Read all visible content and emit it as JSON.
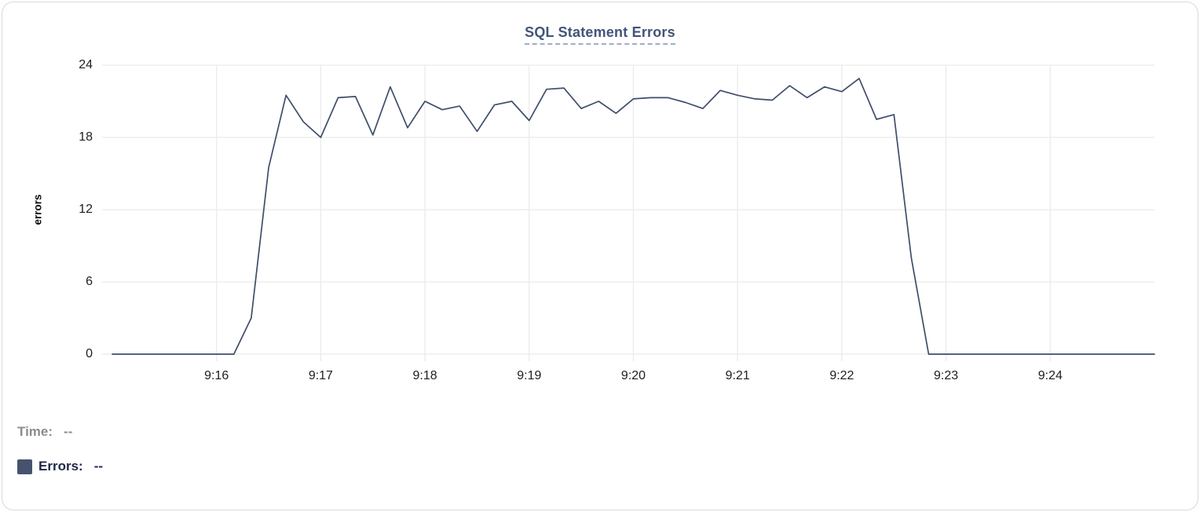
{
  "chart_data": {
    "type": "line",
    "title": "SQL Statement Errors",
    "xlabel": "",
    "ylabel": "errors",
    "ylim": [
      0,
      24
    ],
    "y_ticks": [
      24,
      18,
      12,
      6,
      0
    ],
    "x_tick_labels": [
      "9:16",
      "9:17",
      "9:18",
      "9:19",
      "9:20",
      "9:21",
      "9:22",
      "9:23",
      "9:24"
    ],
    "x_range": [
      "9:15:00",
      "9:25:00"
    ],
    "sample_interval_seconds": 10,
    "grid": true,
    "legend_position": "bottom-left",
    "series": [
      {
        "name": "Errors",
        "color": "#3f4e6a",
        "times": [
          "9:15:00",
          "9:15:10",
          "9:15:20",
          "9:15:30",
          "9:15:40",
          "9:15:50",
          "9:16:00",
          "9:16:10",
          "9:16:20",
          "9:16:30",
          "9:16:40",
          "9:16:50",
          "9:17:00",
          "9:17:10",
          "9:17:20",
          "9:17:30",
          "9:17:40",
          "9:17:50",
          "9:18:00",
          "9:18:10",
          "9:18:20",
          "9:18:30",
          "9:18:40",
          "9:18:50",
          "9:19:00",
          "9:19:10",
          "9:19:20",
          "9:19:30",
          "9:19:40",
          "9:19:50",
          "9:20:00",
          "9:20:10",
          "9:20:20",
          "9:20:30",
          "9:20:40",
          "9:20:50",
          "9:21:00",
          "9:21:10",
          "9:21:20",
          "9:21:30",
          "9:21:40",
          "9:21:50",
          "9:22:00",
          "9:22:10",
          "9:22:20",
          "9:22:30",
          "9:22:40",
          "9:22:50",
          "9:23:00",
          "9:23:10",
          "9:23:20",
          "9:23:30",
          "9:23:40",
          "9:23:50",
          "9:24:00",
          "9:24:10",
          "9:24:20",
          "9:24:30",
          "9:24:40",
          "9:24:50",
          "9:25:00"
        ],
        "values": [
          0,
          0,
          0,
          0,
          0,
          0,
          0,
          0,
          3,
          15.5,
          21.5,
          19.3,
          18,
          21.3,
          21.4,
          18.2,
          22.2,
          18.8,
          21,
          20.3,
          20.6,
          18.5,
          20.7,
          21,
          19.4,
          22,
          22.1,
          20.4,
          21,
          20,
          21.2,
          21.3,
          21.3,
          20.9,
          20.4,
          21.9,
          21.5,
          21.2,
          21.1,
          22.3,
          21.3,
          22.2,
          21.8,
          22.9,
          19.5,
          19.9,
          8,
          0,
          0,
          0,
          0,
          0,
          0,
          0,
          0,
          0,
          0,
          0,
          0,
          0,
          0
        ]
      }
    ]
  },
  "hover_readout": {
    "time_label": "Time:",
    "time_value": "--",
    "errors_label": "Errors:",
    "errors_value": "--"
  },
  "colors": {
    "line": "#3f4e6a",
    "legend_swatch": "#46536e",
    "title_text": "#415578",
    "title_underline": "#9daec8",
    "grid": "#ebebeb",
    "tick_text": "#202020",
    "time_text": "#8c8c8c",
    "errors_text": "#1d2847",
    "card_border": "#d9d9d9"
  }
}
